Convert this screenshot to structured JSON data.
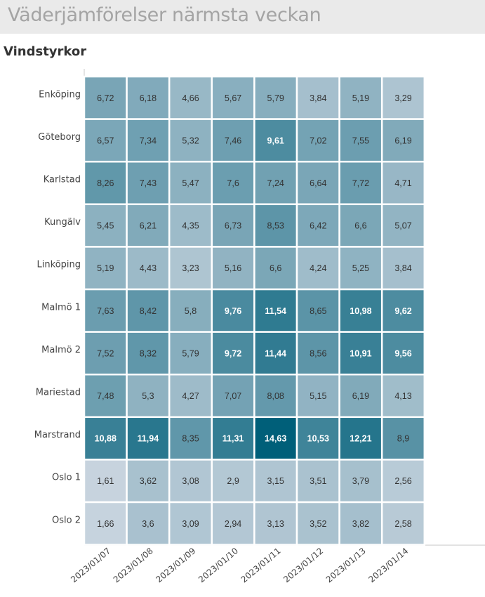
{
  "header": {
    "title": "Väderjämförelser närmsta veckan"
  },
  "chart_data": {
    "type": "heatmap",
    "title": "Vindstyrkor",
    "x": [
      "2023/01/07",
      "2023/01/08",
      "2023/01/09",
      "2023/01/10",
      "2023/01/11",
      "2023/01/12",
      "2023/01/13",
      "2023/01/14"
    ],
    "y": [
      "Enköping",
      "Göteborg",
      "Karlstad",
      "Kungälv",
      "Linköping",
      "Malmö 1",
      "Malmö 2",
      "Mariestad",
      "Marstrand",
      "Oslo 1",
      "Oslo 2"
    ],
    "values": [
      [
        6.72,
        6.18,
        4.66,
        5.67,
        5.79,
        3.84,
        5.19,
        3.29
      ],
      [
        6.57,
        7.34,
        5.32,
        7.46,
        9.61,
        7.02,
        7.55,
        6.19
      ],
      [
        8.26,
        7.43,
        5.47,
        7.6,
        7.24,
        6.64,
        7.72,
        4.71
      ],
      [
        5.45,
        6.21,
        4.35,
        6.73,
        8.53,
        6.42,
        6.6,
        5.07
      ],
      [
        5.19,
        4.43,
        3.23,
        5.16,
        6.6,
        4.24,
        5.25,
        3.84
      ],
      [
        7.63,
        8.42,
        5.8,
        9.76,
        11.54,
        8.65,
        10.98,
        9.62
      ],
      [
        7.52,
        8.32,
        5.79,
        9.72,
        11.44,
        8.56,
        10.91,
        9.56
      ],
      [
        7.48,
        5.3,
        4.27,
        7.07,
        8.08,
        5.15,
        6.19,
        4.13
      ],
      [
        10.88,
        11.94,
        8.35,
        11.31,
        14.63,
        10.53,
        12.21,
        8.9
      ],
      [
        1.61,
        3.62,
        3.08,
        2.9,
        3.15,
        3.51,
        3.79,
        2.56
      ],
      [
        1.66,
        3.6,
        3.09,
        2.94,
        3.13,
        3.52,
        3.82,
        2.58
      ]
    ],
    "decimal_separator": ",",
    "color_low": "#c7d3de",
    "color_high": "#005f79",
    "cell_border_color": "#ffffff",
    "text_color_dark": "#333333",
    "text_color_light": "#ffffff",
    "grid": false
  }
}
